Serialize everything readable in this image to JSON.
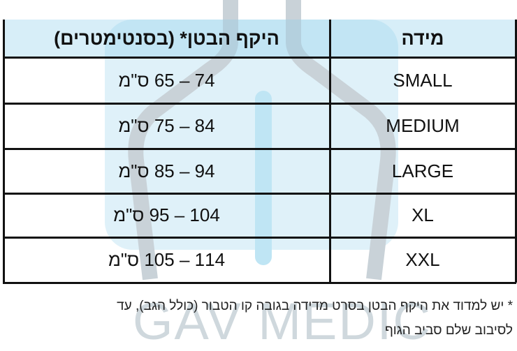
{
  "table": {
    "header": [
      "מידה",
      "היקף הבטן* (בסנטימטרים)"
    ],
    "rows": [
      [
        "SMALL",
        "74 – 65 ס\"מ"
      ],
      [
        "MEDIUM",
        "84 – 75 ס\"מ"
      ],
      [
        "LARGE",
        "94 – 85 ס\"מ"
      ],
      [
        "XL",
        "104 – 95 ס\"מ"
      ],
      [
        "XXL",
        "114 – 105 ס\"מ"
      ]
    ]
  },
  "footnote": [
    "* יש למדוד את היקף הבטן בסרט מדידה בגובה קו הטבור (כולל הגב), עד",
    "לסיבוב שלם סביב הגוף"
  ],
  "watermark": "GAV MEDIC"
}
